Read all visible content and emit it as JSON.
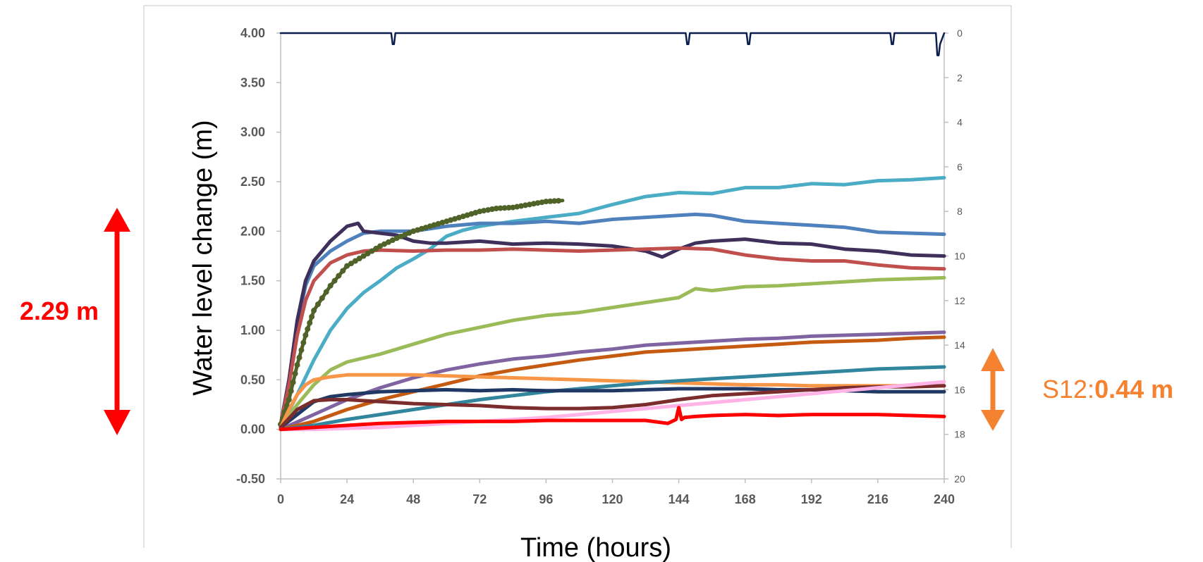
{
  "chart_data": {
    "type": "line",
    "title": "",
    "xlabel": "Time (hours)",
    "ylabel": "Water level change (m)",
    "xlim": [
      0,
      240
    ],
    "ylim": [
      -0.5,
      4.0
    ],
    "y2lim": [
      20,
      0
    ],
    "x_ticks": [
      "0",
      "24",
      "48",
      "72",
      "96",
      "120",
      "144",
      "168",
      "192",
      "216",
      "240"
    ],
    "y_ticks": [
      "-0.50",
      "0.00",
      "0.50",
      "1.00",
      "1.50",
      "2.00",
      "2.50",
      "3.00",
      "3.50",
      "4.00"
    ],
    "y2_ticks": [
      "0",
      "2",
      "4",
      "6",
      "8",
      "10",
      "12",
      "14",
      "16",
      "18",
      "20"
    ],
    "grid": false,
    "legend": "none",
    "series": [
      {
        "color": "#4bacc6",
        "x": [
          0,
          6,
          12,
          18,
          24,
          30,
          36,
          42,
          48,
          54,
          60,
          66,
          72,
          84,
          96,
          108,
          120,
          132,
          144,
          156,
          168,
          180,
          192,
          204,
          216,
          228,
          240
        ],
        "y": [
          0.02,
          0.35,
          0.7,
          1.0,
          1.22,
          1.38,
          1.5,
          1.63,
          1.72,
          1.82,
          1.95,
          2.01,
          2.05,
          2.1,
          2.14,
          2.18,
          2.27,
          2.35,
          2.39,
          2.38,
          2.44,
          2.44,
          2.48,
          2.47,
          2.51,
          2.52,
          2.54
        ]
      },
      {
        "color": "#4f81bd",
        "x": [
          0,
          3,
          6,
          9,
          12,
          18,
          24,
          30,
          36,
          48,
          60,
          72,
          84,
          96,
          108,
          120,
          132,
          144,
          150,
          156,
          168,
          180,
          192,
          204,
          216,
          228,
          240
        ],
        "y": [
          0.05,
          0.5,
          1.05,
          1.45,
          1.65,
          1.8,
          1.9,
          1.98,
          2.0,
          2.0,
          2.05,
          2.08,
          2.08,
          2.1,
          2.08,
          2.12,
          2.14,
          2.16,
          2.17,
          2.16,
          2.1,
          2.08,
          2.06,
          2.04,
          1.99,
          1.98,
          1.97
        ]
      },
      {
        "color": "#3f2f5b",
        "x": [
          0,
          3,
          6,
          9,
          12,
          18,
          24,
          28,
          30,
          36,
          42,
          48,
          54,
          60,
          72,
          84,
          96,
          108,
          120,
          132,
          138,
          144,
          150,
          156,
          168,
          180,
          192,
          204,
          216,
          228,
          240
        ],
        "y": [
          0.05,
          0.5,
          1.1,
          1.5,
          1.7,
          1.9,
          2.05,
          2.08,
          2.0,
          1.98,
          1.96,
          1.9,
          1.88,
          1.88,
          1.9,
          1.87,
          1.88,
          1.87,
          1.85,
          1.8,
          1.74,
          1.82,
          1.88,
          1.9,
          1.92,
          1.88,
          1.87,
          1.82,
          1.8,
          1.76,
          1.75
        ]
      },
      {
        "color": "#c0504d",
        "x": [
          0,
          3,
          6,
          9,
          12,
          18,
          24,
          30,
          36,
          48,
          60,
          72,
          84,
          96,
          108,
          120,
          132,
          144,
          156,
          168,
          180,
          192,
          204,
          216,
          228,
          240
        ],
        "y": [
          0.05,
          0.45,
          0.95,
          1.3,
          1.5,
          1.68,
          1.76,
          1.8,
          1.81,
          1.8,
          1.81,
          1.81,
          1.82,
          1.81,
          1.8,
          1.81,
          1.82,
          1.83,
          1.82,
          1.76,
          1.72,
          1.7,
          1.7,
          1.66,
          1.63,
          1.62
        ]
      },
      {
        "color": "#4f6228",
        "marker": "dot",
        "x": [
          0,
          3,
          6,
          9,
          12,
          18,
          24,
          30,
          36,
          42,
          48,
          54,
          60,
          66,
          72,
          78,
          84,
          90,
          96,
          102
        ],
        "y": [
          0.05,
          0.3,
          0.65,
          0.95,
          1.2,
          1.45,
          1.65,
          1.75,
          1.85,
          1.93,
          2.0,
          2.05,
          2.1,
          2.15,
          2.2,
          2.23,
          2.24,
          2.27,
          2.3,
          2.31
        ]
      },
      {
        "color": "#9bbb59",
        "x": [
          0,
          6,
          12,
          18,
          24,
          36,
          48,
          60,
          72,
          84,
          96,
          108,
          120,
          132,
          144,
          150,
          156,
          168,
          180,
          192,
          204,
          216,
          228,
          240
        ],
        "y": [
          0.02,
          0.25,
          0.45,
          0.6,
          0.68,
          0.76,
          0.86,
          0.96,
          1.03,
          1.1,
          1.15,
          1.18,
          1.23,
          1.28,
          1.33,
          1.42,
          1.4,
          1.44,
          1.45,
          1.47,
          1.49,
          1.51,
          1.52,
          1.53
        ]
      },
      {
        "color": "#8064a2",
        "x": [
          0,
          12,
          24,
          36,
          48,
          60,
          72,
          84,
          96,
          108,
          120,
          132,
          144,
          156,
          168,
          180,
          192,
          204,
          216,
          228,
          240
        ],
        "y": [
          0.0,
          0.15,
          0.3,
          0.42,
          0.52,
          0.6,
          0.66,
          0.71,
          0.74,
          0.78,
          0.81,
          0.85,
          0.87,
          0.89,
          0.91,
          0.92,
          0.94,
          0.95,
          0.96,
          0.97,
          0.98
        ]
      },
      {
        "color": "#c55a11",
        "x": [
          0,
          12,
          24,
          36,
          48,
          60,
          72,
          84,
          96,
          108,
          120,
          132,
          144,
          156,
          168,
          180,
          192,
          204,
          216,
          228,
          240
        ],
        "y": [
          0.0,
          0.08,
          0.2,
          0.3,
          0.38,
          0.46,
          0.54,
          0.6,
          0.65,
          0.7,
          0.74,
          0.78,
          0.8,
          0.82,
          0.84,
          0.86,
          0.88,
          0.89,
          0.9,
          0.92,
          0.93
        ]
      },
      {
        "color": "#f79646",
        "x": [
          0,
          3,
          6,
          9,
          12,
          18,
          24,
          36,
          48,
          60,
          72,
          84,
          96,
          108,
          120,
          132,
          144,
          156,
          168,
          180,
          192,
          204,
          216,
          228,
          240
        ],
        "y": [
          0.02,
          0.2,
          0.35,
          0.45,
          0.5,
          0.53,
          0.55,
          0.55,
          0.55,
          0.54,
          0.53,
          0.52,
          0.51,
          0.5,
          0.49,
          0.48,
          0.47,
          0.46,
          0.45,
          0.45,
          0.44,
          0.44,
          0.44,
          0.44,
          0.44
        ]
      },
      {
        "color": "#31859c",
        "x": [
          0,
          12,
          24,
          36,
          48,
          60,
          72,
          84,
          96,
          108,
          120,
          132,
          144,
          156,
          168,
          180,
          192,
          204,
          216,
          228,
          240
        ],
        "y": [
          0.0,
          0.04,
          0.1,
          0.15,
          0.2,
          0.25,
          0.3,
          0.34,
          0.38,
          0.41,
          0.44,
          0.47,
          0.49,
          0.51,
          0.53,
          0.55,
          0.57,
          0.59,
          0.61,
          0.62,
          0.63
        ]
      },
      {
        "color": "#1f3864",
        "x": [
          0,
          6,
          12,
          18,
          24,
          36,
          48,
          60,
          72,
          84,
          96,
          108,
          120,
          132,
          144,
          156,
          168,
          180,
          192,
          204,
          216,
          228,
          240
        ],
        "y": [
          0.02,
          0.15,
          0.28,
          0.33,
          0.35,
          0.38,
          0.39,
          0.4,
          0.39,
          0.4,
          0.39,
          0.39,
          0.39,
          0.4,
          0.41,
          0.41,
          0.41,
          0.4,
          0.4,
          0.39,
          0.38,
          0.38,
          0.38
        ]
      },
      {
        "color": "#7b2c2c",
        "x": [
          0,
          6,
          12,
          18,
          24,
          36,
          48,
          60,
          72,
          84,
          96,
          108,
          120,
          132,
          144,
          156,
          168,
          180,
          192,
          204,
          216,
          228,
          240
        ],
        "y": [
          0.02,
          0.2,
          0.29,
          0.3,
          0.3,
          0.28,
          0.26,
          0.25,
          0.24,
          0.22,
          0.21,
          0.21,
          0.22,
          0.25,
          0.3,
          0.34,
          0.36,
          0.38,
          0.4,
          0.42,
          0.43,
          0.43,
          0.44
        ]
      },
      {
        "color": "#ffb3e6",
        "x": [
          0,
          12,
          24,
          36,
          48,
          60,
          72,
          84,
          96,
          108,
          120,
          132,
          144,
          156,
          168,
          180,
          192,
          204,
          216,
          228,
          240
        ],
        "y": [
          0.0,
          0.0,
          0.01,
          0.02,
          0.04,
          0.06,
          0.08,
          0.1,
          0.12,
          0.15,
          0.18,
          0.21,
          0.24,
          0.27,
          0.3,
          0.33,
          0.36,
          0.39,
          0.42,
          0.45,
          0.48
        ]
      },
      {
        "color": "#ff0000",
        "x": [
          0,
          12,
          24,
          36,
          48,
          60,
          72,
          84,
          96,
          108,
          120,
          132,
          140,
          143,
          144,
          145,
          146,
          150,
          156,
          168,
          180,
          192,
          204,
          216,
          228,
          240
        ],
        "y": [
          0.0,
          0.02,
          0.04,
          0.06,
          0.07,
          0.08,
          0.08,
          0.08,
          0.09,
          0.09,
          0.09,
          0.09,
          0.06,
          0.1,
          0.22,
          0.1,
          0.12,
          0.13,
          0.14,
          0.15,
          0.14,
          0.15,
          0.15,
          0.15,
          0.14,
          0.13
        ]
      },
      {
        "color": "#0b1f4f",
        "axis": "right",
        "x": [
          0,
          40,
          40.5,
          41,
          41.5,
          146.5,
          147,
          147.5,
          148,
          168.5,
          169,
          169.5,
          170,
          220.5,
          221,
          221.5,
          222,
          237,
          237.5,
          238,
          238.5,
          240
        ],
        "y": [
          0,
          0,
          0.5,
          0.5,
          0,
          0,
          0.5,
          0.5,
          0,
          0,
          0.5,
          0.5,
          0,
          0,
          0.5,
          0.5,
          0,
          0,
          1.0,
          1.0,
          0.5,
          0
        ]
      }
    ],
    "annotations": {
      "left_value": "2.29 m",
      "right_label": "S12:",
      "right_value": "0.44 m"
    }
  }
}
